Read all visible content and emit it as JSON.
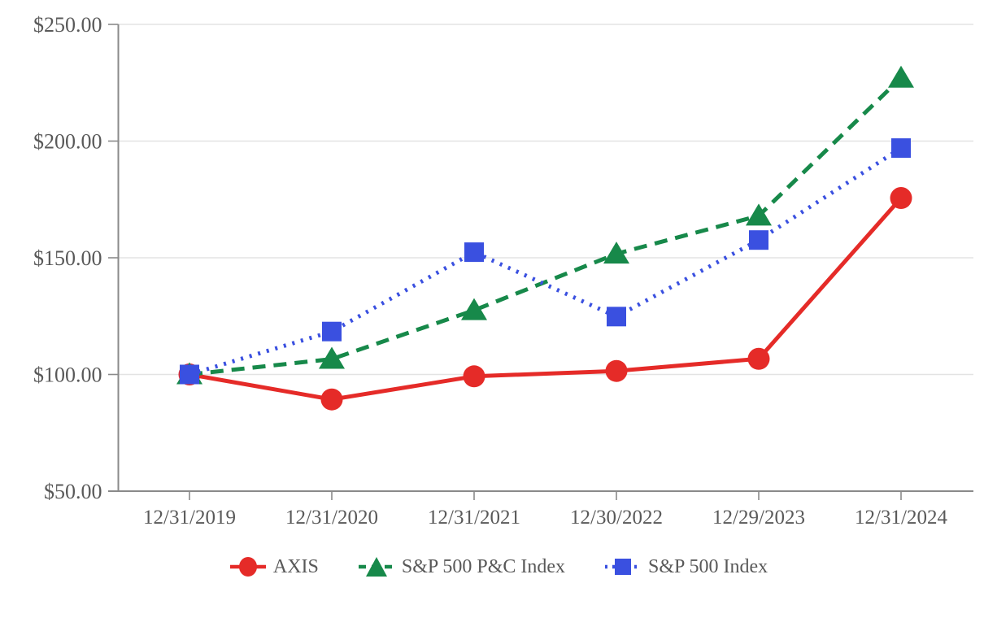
{
  "chart_data": {
    "type": "line",
    "title": "",
    "xlabel": "",
    "ylabel": "",
    "x_labels": [
      "12/31/2019",
      "12/31/2020",
      "12/31/2021",
      "12/30/2022",
      "12/29/2023",
      "12/31/2024"
    ],
    "y_ticks": [
      {
        "value": 250,
        "label": "$250.00"
      },
      {
        "value": 200,
        "label": "$200.00"
      },
      {
        "value": 150,
        "label": "$150.00"
      },
      {
        "value": 100,
        "label": "$100.00"
      },
      {
        "value": 50,
        "label": "$50.00"
      }
    ],
    "ylim": [
      50,
      250
    ],
    "grid": true,
    "legend_position": "bottom",
    "series": [
      {
        "name": "AXIS",
        "color": "#e52b28",
        "marker": "circle",
        "line_style": "solid",
        "values": [
          100.0,
          89.3,
          99.2,
          101.5,
          106.7,
          175.6
        ]
      },
      {
        "name": "S&P 500 P&C Index",
        "color": "#17894a",
        "marker": "triangle",
        "line_style": "dashed",
        "values": [
          100.0,
          106.6,
          127.5,
          151.7,
          168.0,
          227.1
        ]
      },
      {
        "name": "S&P 500 Index",
        "color": "#3a50e0",
        "marker": "square",
        "line_style": "dotted",
        "values": [
          100.0,
          118.4,
          152.4,
          124.8,
          157.6,
          197.0
        ]
      }
    ]
  },
  "theme": {
    "axis_color": "#8a8a8a",
    "grid_color": "#e3e3e3",
    "text_color": "#595959",
    "background": "#ffffff"
  }
}
